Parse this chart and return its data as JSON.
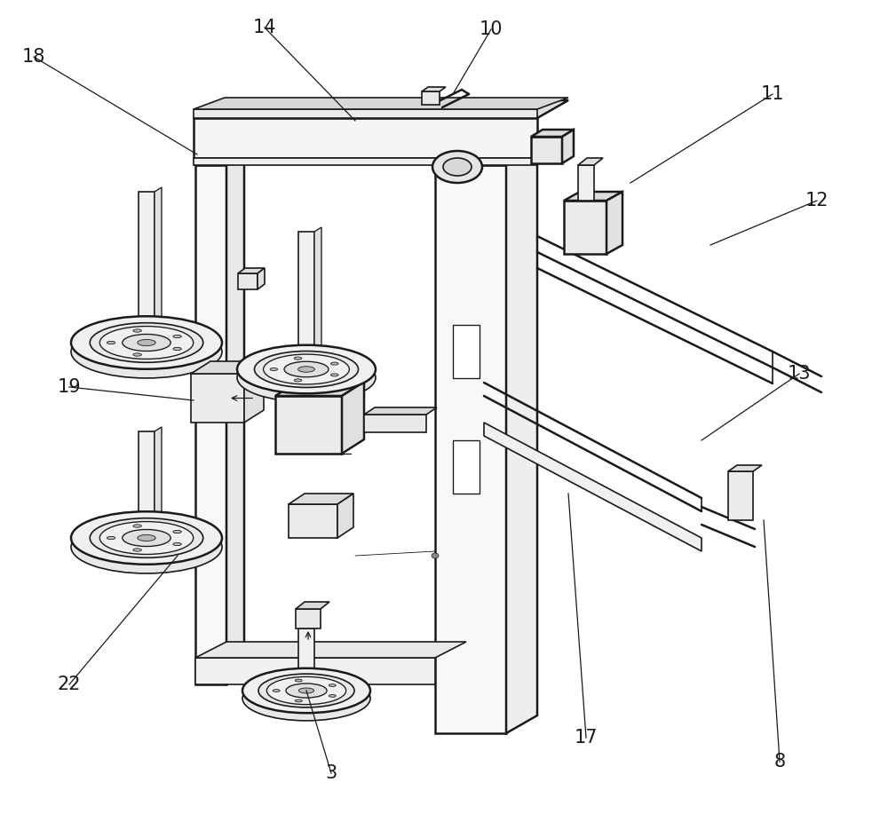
{
  "background_color": "#ffffff",
  "line_color": "#1a1a1a",
  "label_color": "#1a1a1a",
  "fig_width": 10.0,
  "fig_height": 9.26,
  "dpi": 100
}
